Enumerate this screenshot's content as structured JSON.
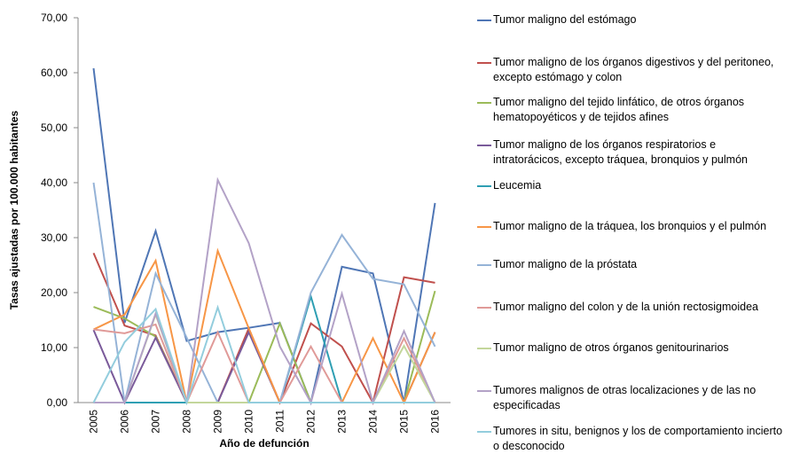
{
  "chart_data": {
    "type": "line",
    "y_label": "Tasas ajustadas por 100.000 habitantes",
    "x_label": "Año de defunción",
    "categories": [
      "2005",
      "2006",
      "2007",
      "2008",
      "2009",
      "2010",
      "2011",
      "2012",
      "2013",
      "2014",
      "2015",
      "2016"
    ],
    "ylim": [
      0,
      70
    ],
    "yticks": [
      {
        "value": 0,
        "label": "0,00"
      },
      {
        "value": 10,
        "label": "10,00"
      },
      {
        "value": 20,
        "label": "20,00"
      },
      {
        "value": 30,
        "label": "30,00"
      },
      {
        "value": 40,
        "label": "40,00"
      },
      {
        "value": 50,
        "label": "50,00"
      },
      {
        "value": 60,
        "label": "60,00"
      },
      {
        "value": 70,
        "label": "70,00"
      }
    ],
    "legend": "right",
    "series": [
      {
        "name": "Tumor maligno del estómago",
        "color": "#4f76b5",
        "values": [
          60.8,
          14.5,
          31.2,
          11.2,
          12.8,
          13.6,
          14.5,
          0,
          24.7,
          23.5,
          0,
          36.3
        ]
      },
      {
        "name": "Tumor maligno de los órganos digestivos y del peritoneo, excepto estómago y colon",
        "color": "#c0504d",
        "values": [
          27.2,
          14,
          12.2,
          0,
          0,
          13.5,
          0,
          14.4,
          10.2,
          0,
          22.8,
          21.8
        ]
      },
      {
        "name": "Tumor maligno del tejido linfático, de otros órganos hematopoyéticos y de tejidos afines",
        "color": "#9bbb59",
        "values": [
          17.4,
          15.3,
          12,
          0,
          0,
          0,
          14.4,
          0,
          0,
          0,
          0,
          20.3
        ]
      },
      {
        "name": "Tumor maligno de los órganos respiratorios e intratorácicos, excepto tráquea, bronquios y pulmón",
        "color": "#7a5a9a",
        "values": [
          13.2,
          0,
          11.8,
          0,
          0,
          12.8,
          0,
          0,
          0,
          0,
          0,
          12.8
        ]
      },
      {
        "name": "Leucemia",
        "color": "#2f9fb3",
        "values": [
          0,
          0,
          0,
          0,
          0,
          0,
          0,
          19.3,
          0,
          0,
          0,
          0
        ]
      },
      {
        "name": "Tumor maligno de la tráquea, los bronquios y el pulmón",
        "color": "#f79646",
        "values": [
          13.3,
          16,
          25.8,
          0,
          27.6,
          13.5,
          0,
          0,
          0,
          11.7,
          0,
          12.8
        ]
      },
      {
        "name": "Tumor maligno de la próstata",
        "color": "#95b3d7",
        "values": [
          40,
          0,
          23.5,
          11.8,
          0,
          0,
          0,
          20,
          30.5,
          22.5,
          21.5,
          10.2
        ]
      },
      {
        "name": "Tumor maligno del colon y de la unión rectosigmoidea",
        "color": "#e09a98",
        "values": [
          13.3,
          12.6,
          14.2,
          0,
          12.8,
          0,
          0,
          10.2,
          0,
          0,
          11.7,
          0
        ]
      },
      {
        "name": "Tumor maligno de otros órganos genitourinarios",
        "color": "#c3d69b",
        "values": [
          0,
          0,
          16,
          0,
          0,
          0,
          0,
          0,
          0,
          0,
          10.3,
          0
        ]
      },
      {
        "name": "Tumores malignos de otras localizaciones y de las no especificadas",
        "color": "#b3a2c7",
        "values": [
          0,
          0,
          16.2,
          0,
          40.5,
          29,
          10.2,
          0,
          19.8,
          0,
          13,
          0
        ]
      },
      {
        "name": "Tumores in situ, benignos y los de comportamiento incierto o desconocido",
        "color": "#93cddd",
        "values": [
          0,
          11,
          17,
          0,
          17.3,
          0,
          0,
          0,
          0,
          0,
          0,
          0
        ]
      }
    ]
  }
}
